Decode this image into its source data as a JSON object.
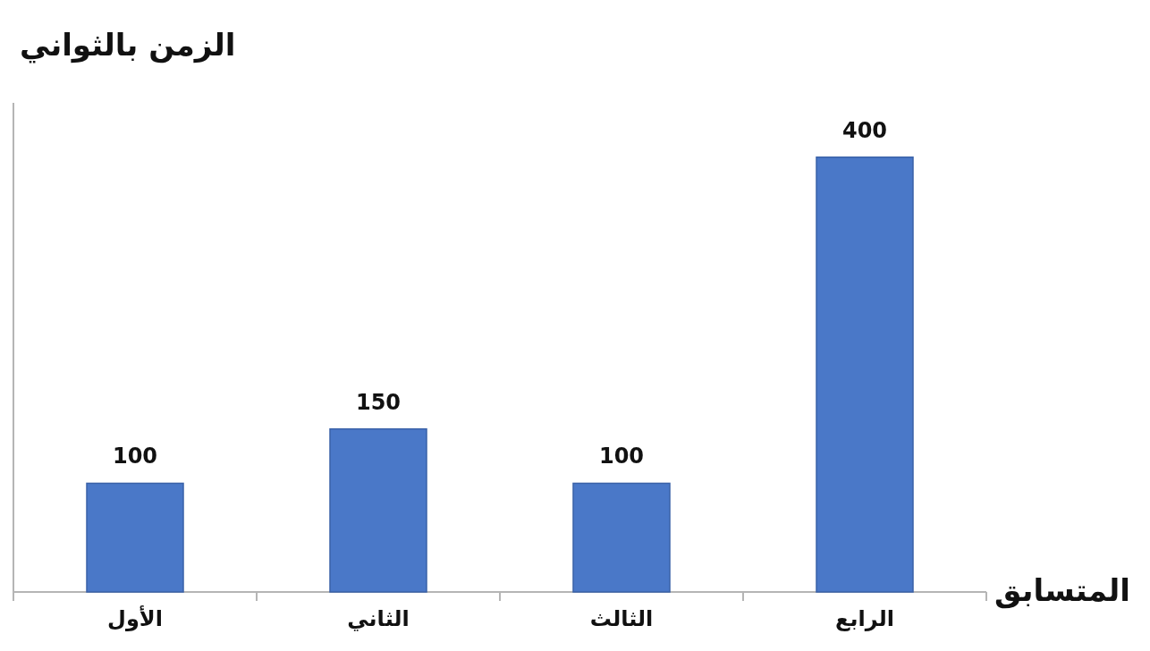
{
  "chart_data": {
    "type": "bar",
    "ylabel": "الزمن بالثواني",
    "xlabel": "المتسابق",
    "categories": [
      "الأول",
      "الثاني",
      "الثالث",
      "الرابع"
    ],
    "values": [
      100,
      150,
      100,
      400
    ],
    "color": "#4a78c8",
    "ylim": [
      0,
      450
    ],
    "data_labels": true,
    "tick_labels": "x"
  }
}
